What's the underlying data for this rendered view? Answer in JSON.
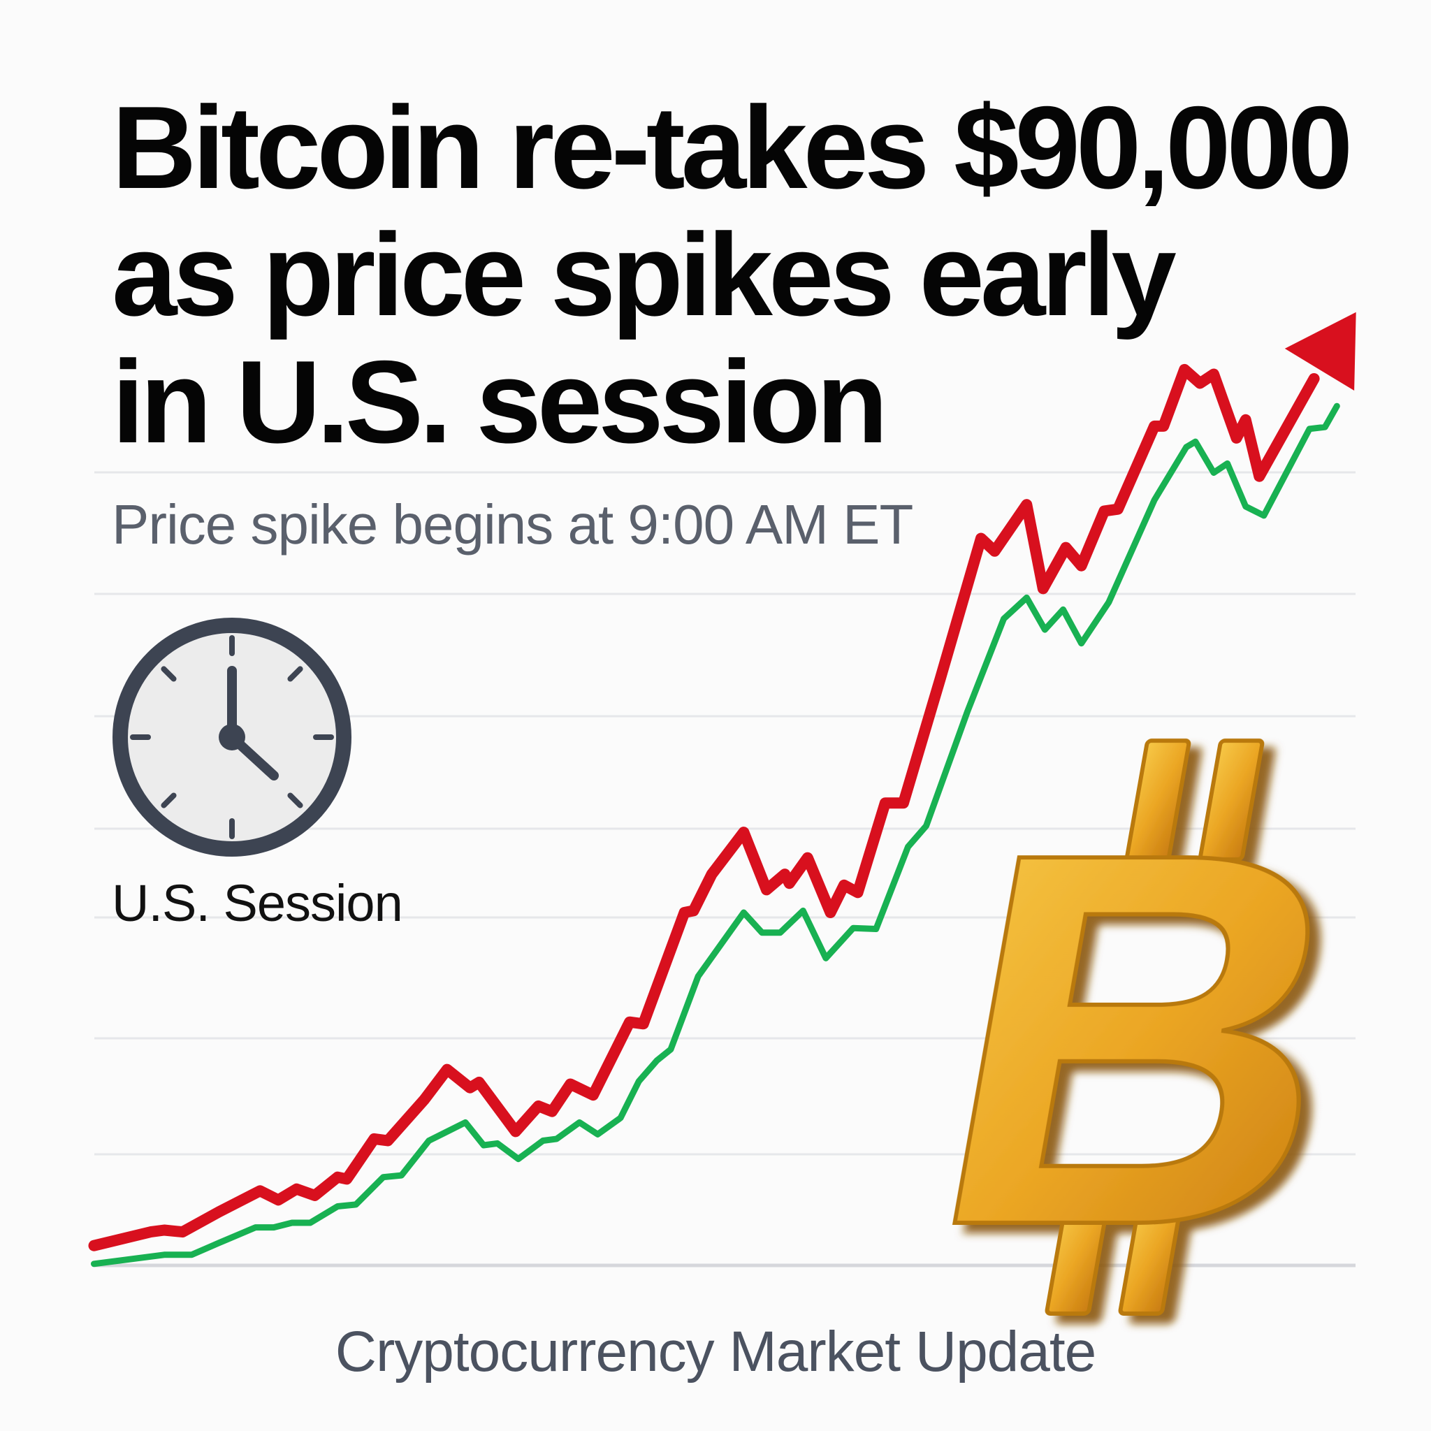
{
  "headline": {
    "lines": [
      "Bitcoin re-takes $90,000",
      "as price spikes early",
      "in U.S. session"
    ]
  },
  "subtitle": "Price spike begins at 9:00 AM ET",
  "clock": {
    "icon": "clock-icon",
    "time_shown": "5:00",
    "label": "U.S. Session"
  },
  "footer": "Cryptocurrency Market Update",
  "bitcoin_logo": {
    "icon": "bitcoin-icon",
    "letter": "B"
  },
  "colors": {
    "red_line": "#d8101e",
    "green_line": "#18b152",
    "gold": "#e8a420",
    "clock_frame": "#3d4452",
    "gridline": "#e3e4e8"
  }
}
